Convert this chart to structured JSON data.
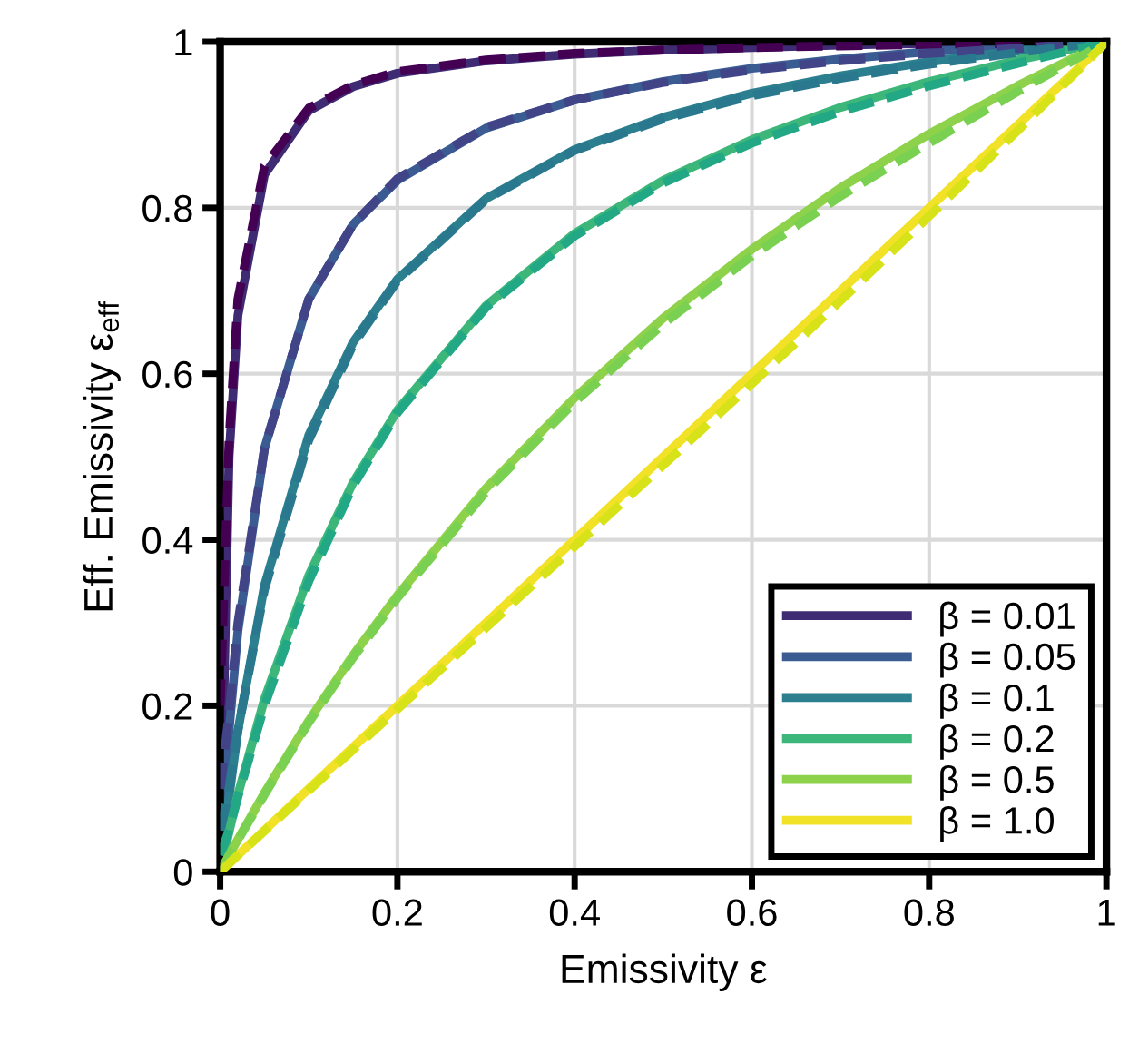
{
  "chart_data": {
    "type": "line",
    "xlabel": "Emissivity ε",
    "ylabel": "Eff. Emissivity ε$_{eff}$",
    "x": [
      0,
      0.01,
      0.02,
      0.05,
      0.1,
      0.15,
      0.2,
      0.3,
      0.4,
      0.5,
      0.6,
      0.7,
      0.8,
      0.9,
      1
    ],
    "xlim": [
      0,
      1
    ],
    "ylim": [
      0,
      1
    ],
    "xticks": [
      0,
      0.2,
      0.4,
      0.6,
      0.8,
      1
    ],
    "yticks": [
      0,
      0.2,
      0.4,
      0.6,
      0.8,
      1
    ],
    "grid": true,
    "legend": "bottom right",
    "marker": "none",
    "series": [
      {
        "name": "β = 0.01",
        "color": "#3f2b73",
        "line_style": "solid",
        "values": [
          0,
          0.5,
          0.67,
          0.84,
          0.917,
          0.946,
          0.962,
          0.977,
          0.985,
          0.99,
          0.993,
          0.996,
          0.998,
          0.999,
          1
        ]
      },
      {
        "name": "β = 0.05",
        "color": "#3b5b93",
        "line_style": "solid",
        "values": [
          0,
          0.17,
          0.29,
          0.51,
          0.69,
          0.78,
          0.833,
          0.896,
          0.93,
          0.952,
          0.968,
          0.979,
          0.988,
          0.994,
          1
        ]
      },
      {
        "name": "β = 0.1",
        "color": "#2b7f8e",
        "line_style": "solid",
        "values": [
          0,
          0.09,
          0.17,
          0.345,
          0.526,
          0.638,
          0.714,
          0.811,
          0.87,
          0.909,
          0.938,
          0.959,
          0.976,
          0.989,
          1
        ]
      },
      {
        "name": "β = 0.2",
        "color": "#3db67a",
        "line_style": "solid",
        "values": [
          0,
          0.048,
          0.093,
          0.208,
          0.357,
          0.469,
          0.556,
          0.682,
          0.769,
          0.833,
          0.882,
          0.921,
          0.952,
          0.978,
          1
        ]
      },
      {
        "name": "β = 0.5",
        "color": "#8ed24b",
        "line_style": "solid",
        "values": [
          0,
          0.02,
          0.039,
          0.095,
          0.182,
          0.261,
          0.333,
          0.462,
          0.571,
          0.667,
          0.75,
          0.824,
          0.889,
          0.947,
          1
        ]
      },
      {
        "name": "β = 1.0",
        "color": "#f2e227",
        "line_style": "solid",
        "values": [
          0,
          0.01,
          0.02,
          0.05,
          0.1,
          0.15,
          0.2,
          0.3,
          0.4,
          0.5,
          0.6,
          0.7,
          0.8,
          0.9,
          1
        ]
      },
      {
        "color": "#440154",
        "line_style": "dashed",
        "values": [
          0.2,
          0.52,
          0.69,
          0.85,
          0.92,
          0.948,
          0.964,
          0.978,
          0.986,
          0.99,
          0.993,
          0.995,
          0.997,
          0.998,
          1
        ]
      },
      {
        "color": "#414487",
        "line_style": "dashed",
        "values": [
          0.1,
          0.19,
          0.3,
          0.51,
          0.69,
          0.78,
          0.835,
          0.897,
          0.93,
          0.951,
          0.966,
          0.977,
          0.986,
          0.992,
          1
        ]
      },
      {
        "color": "#2a788e",
        "line_style": "dashed",
        "values": [
          0.05,
          0.1,
          0.17,
          0.34,
          0.52,
          0.635,
          0.712,
          0.81,
          0.869,
          0.907,
          0.935,
          0.956,
          0.973,
          0.987,
          1
        ]
      },
      {
        "color": "#22a884",
        "line_style": "dashed",
        "values": [
          0.02,
          0.05,
          0.09,
          0.2,
          0.35,
          0.465,
          0.553,
          0.68,
          0.766,
          0.83,
          0.878,
          0.916,
          0.947,
          0.974,
          1
        ]
      },
      {
        "color": "#7ad151",
        "line_style": "dashed",
        "values": [
          0,
          0.02,
          0.038,
          0.093,
          0.18,
          0.258,
          0.33,
          0.458,
          0.566,
          0.66,
          0.742,
          0.814,
          0.878,
          0.94,
          1
        ]
      },
      {
        "color": "#d8e219",
        "line_style": "dashed",
        "values": [
          0,
          0.01,
          0.02,
          0.049,
          0.098,
          0.147,
          0.196,
          0.294,
          0.392,
          0.49,
          0.588,
          0.688,
          0.79,
          0.893,
          1
        ]
      }
    ]
  }
}
